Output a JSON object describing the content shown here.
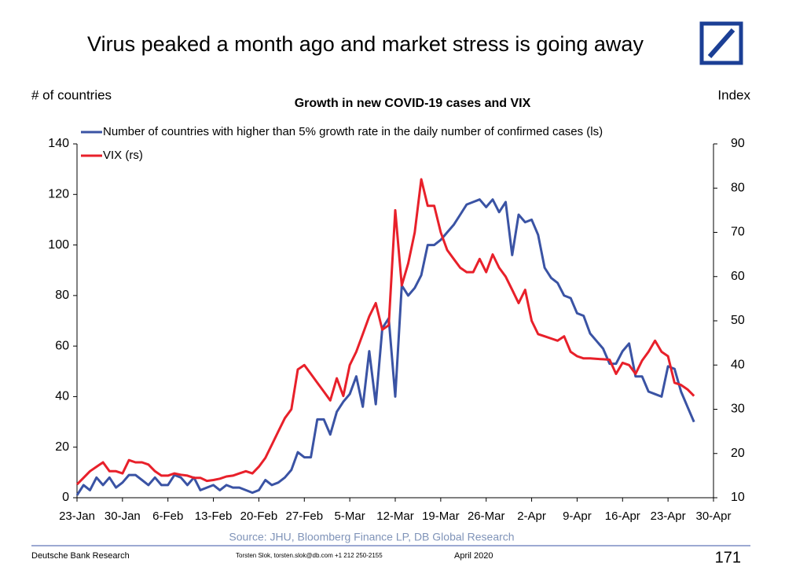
{
  "chart_data": {
    "type": "line",
    "title": "Virus peaked a month ago and market stress is going away",
    "subtitle": "Growth in new COVID-19 cases and VIX",
    "ylabel": "# of countries",
    "y2label": "Index",
    "source": "Source: JHU, Bloomberg Finance LP, DB Global Research",
    "footer": {
      "left": "Deutsche Bank Research",
      "contact": "Torsten Slok, torsten.slok@db.com  +1 212 250-2155",
      "date": "April 2020",
      "page": "171"
    },
    "categories": [
      "23-Jan",
      null,
      null,
      null,
      null,
      null,
      null,
      "30-Jan",
      null,
      null,
      null,
      null,
      null,
      null,
      "6-Feb",
      null,
      null,
      null,
      null,
      null,
      null,
      "13-Feb",
      null,
      null,
      null,
      null,
      null,
      null,
      "20-Feb",
      null,
      null,
      null,
      null,
      null,
      null,
      "27-Feb",
      null,
      null,
      null,
      null,
      null,
      null,
      "5-Mar",
      null,
      null,
      null,
      null,
      null,
      null,
      "12-Mar",
      null,
      null,
      null,
      null,
      null,
      null,
      "19-Mar",
      null,
      null,
      null,
      null,
      null,
      null,
      "26-Mar",
      null,
      null,
      null,
      null,
      null,
      null,
      "2-Apr",
      null,
      null,
      null,
      null,
      null,
      null,
      "9-Apr",
      null,
      null,
      null,
      null,
      null,
      null,
      "16-Apr",
      null,
      null,
      null,
      null,
      null,
      null,
      "23-Apr",
      null,
      null,
      null,
      null,
      null,
      null,
      "30-Apr"
    ],
    "series": [
      {
        "name": "Number of countries with higher than 5% growth rate in the daily number of confirmed cases (ls)",
        "color": "#3a53a4",
        "axis": "y",
        "values": [
          1,
          5,
          3,
          8,
          5,
          8,
          4,
          6,
          9,
          9,
          7,
          5,
          8,
          5,
          5,
          9,
          8,
          5,
          8,
          3,
          4,
          5,
          3,
          5,
          4,
          4,
          3,
          2,
          3,
          7,
          5,
          6,
          8,
          11,
          18,
          16,
          16,
          31,
          31,
          25,
          34,
          38,
          41,
          48,
          36,
          58,
          37,
          67,
          71,
          40,
          84,
          80,
          83,
          88,
          100,
          100,
          102,
          105,
          108,
          112,
          116,
          117,
          118,
          115,
          118,
          113,
          117,
          96,
          112,
          109,
          110,
          104,
          91,
          87,
          85,
          80,
          79,
          73,
          72,
          65,
          62,
          59,
          53,
          53,
          58,
          61,
          48,
          48,
          42,
          41,
          40,
          52,
          51,
          42,
          36,
          30,
          null,
          null,
          null
        ]
      },
      {
        "name": "VIX (rs)",
        "color": "#e8202a",
        "axis": "y2",
        "values": [
          13,
          14.5,
          16,
          17,
          18,
          16,
          16,
          15.5,
          18.5,
          18,
          18,
          17.5,
          16,
          15,
          15,
          15.5,
          15.2,
          15,
          14.5,
          14.5,
          13.8,
          14,
          14.3,
          14.8,
          15,
          15.5,
          16,
          15.5,
          17,
          19,
          22,
          25,
          28,
          30,
          39,
          40,
          38,
          36,
          34,
          32,
          37,
          33,
          40,
          43,
          47,
          51,
          54,
          48,
          49,
          75,
          58,
          63,
          70,
          82,
          76,
          76,
          70,
          66,
          64,
          62,
          61,
          61,
          64,
          61,
          65,
          62,
          60,
          57,
          54,
          57,
          50,
          47,
          46.5,
          46,
          45.5,
          46.5,
          43,
          42,
          41.5,
          41.5,
          41.4,
          41.3,
          41.2,
          38,
          40.5,
          40,
          38,
          41,
          43,
          45.5,
          43,
          42,
          36,
          35.5,
          34.5,
          33,
          null,
          null,
          null
        ]
      }
    ],
    "ylim": [
      0,
      140
    ],
    "yticks": [
      0,
      20,
      40,
      60,
      80,
      100,
      120,
      140
    ],
    "y2lim": [
      10,
      90
    ],
    "y2ticks": [
      10,
      20,
      30,
      40,
      50,
      60,
      70,
      80,
      90
    ],
    "legend": "upper left",
    "grid": false
  }
}
